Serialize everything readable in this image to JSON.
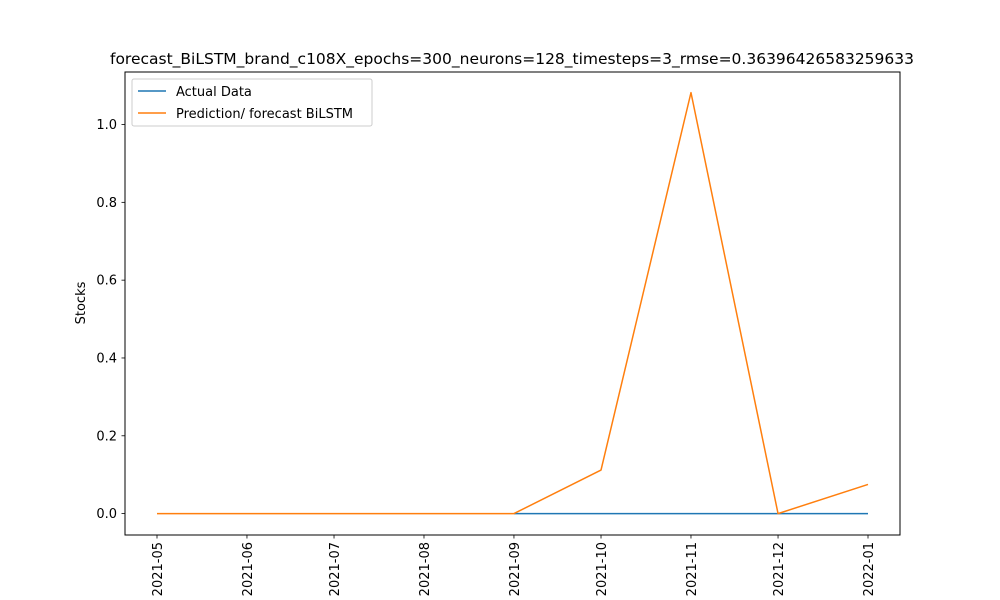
{
  "chart_data": {
    "type": "line",
    "title": "forecast_BiLSTM_brand_c108X_epochs=300_neurons=128_timesteps=3_rmse=0.36396426583259633",
    "xlabel": "",
    "ylabel": "Stocks",
    "x": [
      "2021-05-01",
      "2021-06-01",
      "2021-07-01",
      "2021-08-01",
      "2021-09-01",
      "2021-10-01",
      "2021-11-01",
      "2021-12-01",
      "2022-01-01"
    ],
    "x_tick_labels": [
      "2021-05",
      "2021-06",
      "2021-07",
      "2021-08",
      "2021-09",
      "2021-10",
      "2021-11",
      "2021-12",
      "2022-01"
    ],
    "ylim": [
      -0.055,
      1.135
    ],
    "y_ticks": [
      0.0,
      0.2,
      0.4,
      0.6,
      0.8,
      1.0
    ],
    "y_tick_labels": [
      "0.0",
      "0.2",
      "0.4",
      "0.6",
      "0.8",
      "1.0"
    ],
    "grid": false,
    "legend": "top-left",
    "series": [
      {
        "name": "Actual Data",
        "color": "#1f77b4",
        "x": [
          "2021-09-01",
          "2021-10-01",
          "2021-11-01",
          "2021-12-01",
          "2022-01-01"
        ],
        "values": [
          0,
          0,
          0,
          0,
          0
        ]
      },
      {
        "name": "Prediction/ forecast BiLSTM",
        "color": "#ff7f0e",
        "x": [
          "2021-05-01",
          "2021-06-01",
          "2021-07-01",
          "2021-08-01",
          "2021-09-01",
          "2021-10-01",
          "2021-11-01",
          "2021-12-01",
          "2022-01-01"
        ],
        "values": [
          0,
          0,
          0,
          0,
          0,
          0.112,
          1.082,
          0,
          0.075
        ]
      }
    ]
  }
}
